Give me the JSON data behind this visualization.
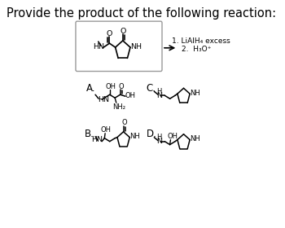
{
  "title": "Provide the product of the following reaction:",
  "bg_color": "#ffffff",
  "text_color": "#000000",
  "reagent1": "1. LiAlH₄ excess",
  "reagent2": "2.  H₃O⁺",
  "font_size_title": 10.5,
  "font_size_label": 8.5,
  "font_size_chem": 6.8,
  "font_size_small": 6.0
}
